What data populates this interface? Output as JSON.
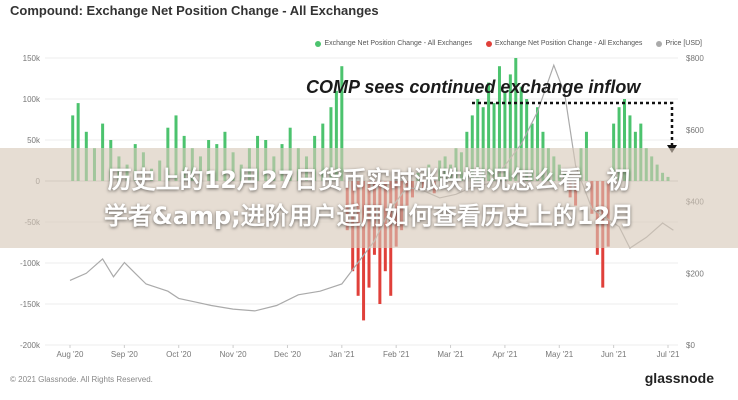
{
  "chart_data": {
    "type": "bar",
    "title": "Compound: Exchange Net Position Change - All Exchanges",
    "annotation": "COMP sees continued exchange inflow",
    "legend": [
      {
        "name": "Exchange Net Position Change - All Exchanges",
        "color": "#4cc36e"
      },
      {
        "name": "Exchange Net Position Change - All Exchanges",
        "color": "#e0403a"
      },
      {
        "name": "Price [USD]",
        "color": "#aaaaaa"
      }
    ],
    "legend_position": "top-right",
    "grid": true,
    "y_left": {
      "ticks": [
        150000,
        100000,
        50000,
        0,
        -50000,
        -100000,
        -150000,
        -200000
      ],
      "tick_labels": [
        "150k",
        "100k",
        "50k",
        "0",
        "-50k",
        "-100k",
        "-150k",
        "-200k"
      ],
      "ylim": [
        -200000,
        150000
      ]
    },
    "y_right": {
      "ticks": [
        800,
        600,
        400,
        200,
        0
      ],
      "tick_labels": [
        "$800",
        "$600",
        "$400",
        "$200",
        "$0"
      ],
      "ylim": [
        0,
        800
      ]
    },
    "x_ticks": [
      "Aug '20",
      "Sep '20",
      "Oct '20",
      "Nov '20",
      "Dec '20",
      "Jan '21",
      "Feb '21",
      "Mar '21",
      "Apr '21",
      "May '21",
      "Jun '21",
      "Jul '21"
    ],
    "series": [
      {
        "name": "Exchange Net Position Change - All Exchanges",
        "kind": "bars",
        "color_positive": "#4cc36e",
        "color_negative": "#e0403a",
        "x": [
          0.05,
          0.15,
          0.3,
          0.45,
          0.6,
          0.75,
          0.9,
          1.05,
          1.2,
          1.35,
          1.5,
          1.65,
          1.8,
          1.95,
          2.1,
          2.25,
          2.4,
          2.55,
          2.7,
          2.85,
          3.0,
          3.15,
          3.3,
          3.45,
          3.6,
          3.75,
          3.9,
          4.05,
          4.2,
          4.35,
          4.5,
          4.65,
          4.8,
          4.9,
          5.0,
          5.1,
          5.2,
          5.3,
          5.4,
          5.5,
          5.6,
          5.7,
          5.8,
          5.9,
          6.0,
          6.1,
          6.2,
          6.3,
          6.4,
          6.5,
          6.6,
          6.7,
          6.8,
          6.9,
          7.0,
          7.1,
          7.2,
          7.3,
          7.4,
          7.5,
          7.6,
          7.7,
          7.8,
          7.9,
          8.0,
          8.1,
          8.2,
          8.3,
          8.4,
          8.5,
          8.6,
          8.7,
          8.8,
          8.9,
          9.0,
          9.1,
          9.2,
          9.3,
          9.4,
          9.5,
          9.6,
          9.7,
          9.8,
          9.9,
          10.0,
          10.1,
          10.2,
          10.3,
          10.4,
          10.5,
          10.6,
          10.7,
          10.8,
          10.9,
          11.0
        ],
        "y": [
          80000,
          95000,
          60000,
          40000,
          70000,
          50000,
          30000,
          20000,
          45000,
          35000,
          15000,
          25000,
          65000,
          80000,
          55000,
          40000,
          30000,
          50000,
          45000,
          60000,
          35000,
          20000,
          40000,
          55000,
          50000,
          30000,
          45000,
          65000,
          40000,
          30000,
          55000,
          70000,
          90000,
          110000,
          140000,
          -60000,
          -110000,
          -140000,
          -170000,
          -130000,
          -90000,
          -150000,
          -110000,
          -140000,
          -80000,
          -60000,
          -30000,
          -20000,
          10000,
          -10000,
          20000,
          -15000,
          25000,
          30000,
          20000,
          40000,
          35000,
          60000,
          80000,
          100000,
          90000,
          120000,
          95000,
          140000,
          110000,
          130000,
          150000,
          115000,
          100000,
          70000,
          90000,
          60000,
          40000,
          30000,
          20000,
          10000,
          -20000,
          -30000,
          40000,
          60000,
          -40000,
          -90000,
          -130000,
          -80000,
          70000,
          90000,
          100000,
          80000,
          60000,
          70000,
          40000,
          30000,
          20000,
          10000,
          5000
        ]
      },
      {
        "name": "Price [USD]",
        "kind": "line",
        "color": "#aaaaaa",
        "x": [
          0,
          0.3,
          0.6,
          0.8,
          1.0,
          1.2,
          1.4,
          1.6,
          1.8,
          2.0,
          2.3,
          2.6,
          3.0,
          3.4,
          3.8,
          4.2,
          4.6,
          5.0,
          5.3,
          5.6,
          5.9,
          6.2,
          6.5,
          6.8,
          7.1,
          7.4,
          7.7,
          8.0,
          8.3,
          8.6,
          8.9,
          9.1,
          9.3,
          9.6,
          9.9,
          10.1,
          10.3,
          10.6,
          10.9,
          11.1
        ],
        "y": [
          180,
          200,
          240,
          190,
          230,
          200,
          170,
          160,
          150,
          130,
          120,
          110,
          100,
          95,
          110,
          140,
          150,
          170,
          230,
          290,
          380,
          440,
          430,
          410,
          420,
          440,
          450,
          500,
          560,
          650,
          780,
          700,
          500,
          380,
          350,
          330,
          270,
          300,
          340,
          320
        ]
      }
    ]
  },
  "footer": {
    "copyright": "© 2021 Glassnode. All Rights Reserved.",
    "brand": "glassnode"
  },
  "overlay": {
    "line1": "历史上的12月27日货币实时涨跌情况怎么看，初",
    "line2": "学者&amp;进阶用户适用如何查看历史上的12月"
  }
}
